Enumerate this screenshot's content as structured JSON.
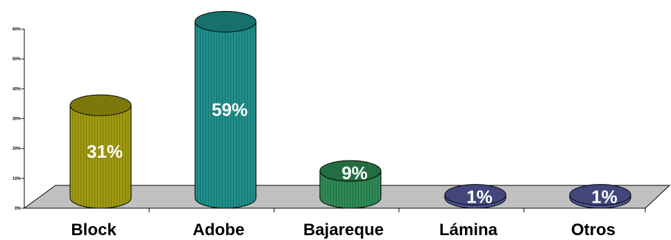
{
  "chart_data": {
    "type": "bar",
    "categories": [
      "Block",
      "Adobe",
      "Bajareque",
      "Lámina",
      "Otros"
    ],
    "values": [
      31,
      59,
      9,
      1,
      1
    ],
    "data_labels": [
      "31%",
      "59%",
      "9%",
      "1%",
      "1%"
    ],
    "y_ticks": [
      "0%",
      "10%",
      "20%",
      "30%",
      "40%",
      "50%",
      "60%"
    ],
    "ylim": [
      0,
      60
    ],
    "title": "",
    "xlabel": "",
    "ylabel": "",
    "grid": false,
    "legend": "none",
    "bar_shape": "3d-cylinder",
    "colors": [
      "#a09a10",
      "#1f8f8a",
      "#2e8a55",
      "#545a9e",
      "#545a9e"
    ],
    "floor_color": "#c0c0c0"
  }
}
